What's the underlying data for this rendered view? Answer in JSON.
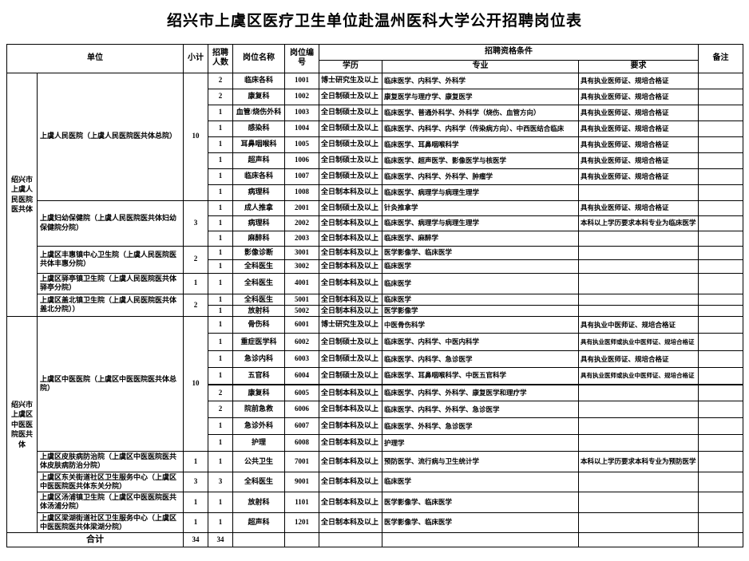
{
  "title": "绍兴市上虞区医疗卫生单位赴温州医科大学公开招聘岗位表",
  "table": {
    "headers": {
      "unit": "单位",
      "subtotal": "小计",
      "recruit_count": "招聘人数",
      "position_name": "岗位名称",
      "position_code": "岗位编号",
      "qualification": "招聘资格条件",
      "education": "学历",
      "major": "专业",
      "requirement": "要求",
      "remark": "备注"
    },
    "groups": [
      {
        "name": "绍兴市上虞人民医院医共体",
        "units": [
          {
            "name": "上虞人民医院（上虞人民医院医共体总院）",
            "subtotal": "10",
            "positions": [
              {
                "count": "2",
                "name": "临床各科",
                "code": "1001",
                "education": "博士研究生及以上",
                "major": "临床医学、内科学、外科学",
                "requirement": "具有执业医师证、规培合格证"
              },
              {
                "count": "2",
                "name": "康复科",
                "code": "1002",
                "education": "全日制硕士及以上",
                "major": "康复医学与理疗学、康复医学",
                "requirement": "具有执业医师证、规培合格证"
              },
              {
                "count": "1",
                "name": "血管/烧伤外科",
                "code": "1003",
                "education": "全日制硕士及以上",
                "major": "临床医学、普通外科学、外科学（烧伤、血管方向）",
                "requirement": "具有执业医师证、规培合格证"
              },
              {
                "count": "1",
                "name": "感染科",
                "code": "1004",
                "education": "全日制硕士及以上",
                "major": "临床医学、内科学、内科学（传染病方向）、中西医结合临床",
                "requirement": "具有执业医师证、规培合格证"
              },
              {
                "count": "1",
                "name": "耳鼻咽喉科",
                "code": "1005",
                "education": "全日制硕士及以上",
                "major": "临床医学、耳鼻咽喉科学",
                "requirement": "具有执业医师证、规培合格证"
              },
              {
                "count": "1",
                "name": "超声科",
                "code": "1006",
                "education": "全日制硕士及以上",
                "major": "临床医学、超声医学、影像医学与核医学",
                "requirement": "具有执业医师证、规培合格证"
              },
              {
                "count": "1",
                "name": "临床各科",
                "code": "1007",
                "education": "全日制硕士及以上",
                "major": "临床医学、内科学、外科学、肿瘤学",
                "requirement": "具有执业医师证、规培合格证"
              },
              {
                "count": "1",
                "name": "病理科",
                "code": "1008",
                "education": "全日制本科及以上",
                "major": "临床医学、病理学与病理生理学",
                "requirement": ""
              }
            ]
          },
          {
            "name": "上虞妇幼保健院（上虞人民医院医共体妇幼保健院分院）",
            "subtotal": "3",
            "positions": [
              {
                "count": "1",
                "name": "成人推拿",
                "code": "2001",
                "education": "全日制硕士及以上",
                "major": "针灸推拿学",
                "requirement": "具有执业医师证、规培合格证"
              },
              {
                "count": "1",
                "name": "病理科",
                "code": "2002",
                "education": "全日制本科及以上",
                "major": "临床医学、病理学与病理生理学",
                "requirement": "本科以上学历要求本科专业为临床医学"
              },
              {
                "count": "1",
                "name": "麻醉科",
                "code": "2003",
                "education": "全日制本科及以上",
                "major": "临床医学、麻醉学",
                "requirement": ""
              }
            ]
          },
          {
            "name": "上虞区丰惠镇中心卫生院（上虞人民医院医共体丰惠分院）",
            "subtotal": "2",
            "positions": [
              {
                "count": "1",
                "name": "影像诊断",
                "code": "3001",
                "education": "全日制本科及以上",
                "major": "医学影像学、临床医学",
                "requirement": ""
              },
              {
                "count": "1",
                "name": "全科医生",
                "code": "3002",
                "education": "全日制本科及以上",
                "major": "临床医学",
                "requirement": ""
              }
            ]
          },
          {
            "name": "上虞区驿亭镇卫生院（上虞人民医院医共体驿亭分院）",
            "subtotal": "1",
            "positions": [
              {
                "count": "1",
                "name": "全科医生",
                "code": "4001",
                "education": "全日制本科及以上",
                "major": "临床医学",
                "requirement": ""
              }
            ]
          },
          {
            "name": "上虞区盖北镇卫生院（上虞人民医院医共体盖北分院））",
            "subtotal": "2",
            "positions": [
              {
                "count": "1",
                "name": "全科医生",
                "code": "5001",
                "education": "全日制本科及以上",
                "major": "临床医学",
                "requirement": ""
              },
              {
                "count": "1",
                "name": "放射科",
                "code": "5002",
                "education": "全日制本科及以上",
                "major": "医学影像学",
                "requirement": ""
              }
            ]
          }
        ]
      },
      {
        "name": "绍兴市上虞区中医医院医共体",
        "units": [
          {
            "name": "上虞区中医医院（上虞区中医医院医共体总院）",
            "subtotal": "10",
            "positions": [
              {
                "count": "1",
                "name": "骨伤科",
                "code": "6001",
                "education": "博士研究生及以上",
                "major": "中医骨伤科学",
                "requirement": "具有执业中医师证、规培合格证"
              },
              {
                "count": "1",
                "name": "重症医学科",
                "code": "6002",
                "education": "全日制硕士及以上",
                "major": "临床医学、内科学、中医内科学",
                "requirement": "具有执业医师或执业中医师证、规培合格证",
                "requirement_small": true
              },
              {
                "count": "1",
                "name": "急诊内科",
                "code": "6003",
                "education": "全日制硕士及以上",
                "major": "临床医学、内科学、急诊医学",
                "requirement": "具有执业医师证、规培合格证"
              },
              {
                "count": "1",
                "name": "五官科",
                "code": "6004",
                "education": "全日制硕士及以上",
                "major": "临床医学、耳鼻咽喉科学、中医五官科学",
                "requirement": "具有执业医师或执业中医师证、规培合格证",
                "requirement_small": true,
                "thick_bottom": true
              },
              {
                "count": "2",
                "name": "康复科",
                "code": "6005",
                "education": "全日制本科及以上",
                "major": "临床医学、内科学、外科学、康复医学和理疗学",
                "requirement": ""
              },
              {
                "count": "2",
                "name": "院前急救",
                "code": "6006",
                "education": "全日制本科及以上",
                "major": "临床医学、内科学、外科学、急诊医学",
                "requirement": ""
              },
              {
                "count": "1",
                "name": "急诊外科",
                "code": "6007",
                "education": "全日制本科及以上",
                "major": "临床医学、外科学、急诊医学",
                "requirement": ""
              },
              {
                "count": "1",
                "name": "护理",
                "code": "6008",
                "education": "全日制本科及以上",
                "major": "护理学",
                "requirement": ""
              }
            ]
          },
          {
            "name": "上虞区皮肤病防治院（上虞区中医医院医共体皮肤病防治分院）",
            "subtotal": "1",
            "positions": [
              {
                "count": "1",
                "name": "公共卫生",
                "code": "7001",
                "education": "全日制本科及以上",
                "major": "预防医学、流行病与卫生统计学",
                "requirement": "本科以上学历要求本科专业为预防医学"
              }
            ]
          },
          {
            "name": "上虞区东关街道社区卫生服务中心（上虞区中医医院医共体东关分院）",
            "subtotal": "3",
            "positions": [
              {
                "count": "3",
                "name": "全科医生",
                "code": "9001",
                "education": "全日制本科及以上",
                "major": "临床医学",
                "requirement": ""
              }
            ]
          },
          {
            "name": "上虞区汤浦镇卫生院（上虞区中医医院医共体汤浦分院）",
            "subtotal": "1",
            "positions": [
              {
                "count": "1",
                "name": "放射科",
                "code": "1101",
                "education": "全日制本科及以上",
                "major": "医学影像学、临床医学",
                "requirement": ""
              }
            ]
          },
          {
            "name": "上虞区梁湖街道社区卫生服务中心（上虞区中医医院医共体梁湖分院）",
            "subtotal": "1",
            "positions": [
              {
                "count": "1",
                "name": "超声科",
                "code": "1201",
                "education": "全日制本科及以上",
                "major": "医学影像学、临床医学",
                "requirement": ""
              }
            ]
          }
        ]
      }
    ],
    "total": {
      "label": "合计",
      "subtotal": "34",
      "count": "34"
    }
  }
}
